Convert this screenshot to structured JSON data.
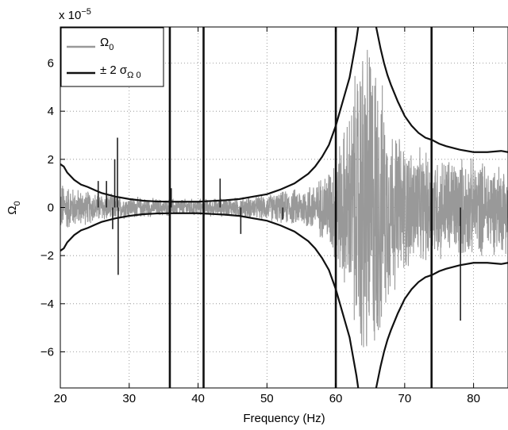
{
  "chart_data": {
    "type": "line",
    "xlabel": "Frequency (Hz)",
    "ylabel": "Ω",
    "ylabel_sub": "0",
    "exponent_label": {
      "prefix": "x 10",
      "power": "−5"
    },
    "xlim": [
      20,
      85
    ],
    "ylim": [
      -7.5,
      7.5
    ],
    "y_scale_exponent": -5,
    "xticks": [
      20,
      30,
      40,
      50,
      60,
      70,
      80
    ],
    "yticks": [
      -6,
      -4,
      -2,
      0,
      2,
      4,
      6
    ],
    "xtick_labels": [
      "20",
      "30",
      "40",
      "50",
      "60",
      "70",
      "80"
    ],
    "ytick_labels": [
      "−6",
      "−4",
      "−2",
      "0",
      "2",
      "4",
      "6"
    ],
    "grid": true,
    "grid_style": "dotted",
    "legend_position": "top-left",
    "series": [
      {
        "name": "Ω",
        "name_sub": "0",
        "style": "noisy signal",
        "color": "#999999",
        "envelope_x": [
          20,
          22,
          25,
          30,
          35,
          40,
          45,
          50,
          55,
          58,
          60,
          62,
          63,
          64,
          65,
          66,
          67,
          68,
          70,
          72,
          75,
          78,
          80,
          83,
          85
        ],
        "envelope_amplitude": [
          1.2,
          0.9,
          0.7,
          0.5,
          0.4,
          0.4,
          0.45,
          0.6,
          0.9,
          1.4,
          2.5,
          4.5,
          6.5,
          8.0,
          8.0,
          7.0,
          5.0,
          4.0,
          3.0,
          2.6,
          2.4,
          2.3,
          2.2,
          2.1,
          2.0
        ],
        "spikes": [
          {
            "x": 25.5,
            "y": 1.1
          },
          {
            "x": 26.7,
            "y": 1.1
          },
          {
            "x": 27.6,
            "y": -0.9
          },
          {
            "x": 27.9,
            "y": 2.0
          },
          {
            "x": 28.3,
            "y": 2.9
          },
          {
            "x": 28.4,
            "y": -2.8
          },
          {
            "x": 36.1,
            "y": 0.8
          },
          {
            "x": 40.8,
            "y": 0.7
          },
          {
            "x": 43.2,
            "y": 1.2
          },
          {
            "x": 46.2,
            "y": -1.1
          },
          {
            "x": 52.3,
            "y": -0.5
          },
          {
            "x": 78.1,
            "y": -4.7
          }
        ]
      },
      {
        "name": "± 2 σ",
        "name_sub": "Ω 0",
        "style": "bounds",
        "color": "#111111",
        "x": [
          20,
          20.5,
          21,
          22,
          23,
          24,
          25,
          26,
          28,
          30,
          32,
          34,
          36,
          38,
          40,
          42,
          44,
          46,
          48,
          50,
          52,
          54,
          56,
          57,
          58,
          59,
          60,
          60.5,
          61,
          61.5,
          62,
          62.5,
          63,
          63.5,
          64,
          65,
          65.5,
          66,
          66.5,
          67,
          67.5,
          68,
          69,
          70,
          71,
          72,
          73,
          74,
          75,
          76,
          78,
          80,
          82,
          84,
          85
        ],
        "upper": [
          1.8,
          1.7,
          1.45,
          1.15,
          0.95,
          0.85,
          0.72,
          0.6,
          0.45,
          0.35,
          0.28,
          0.25,
          0.24,
          0.24,
          0.24,
          0.27,
          0.3,
          0.35,
          0.45,
          0.55,
          0.75,
          1.0,
          1.4,
          1.7,
          2.1,
          2.6,
          3.4,
          3.9,
          4.4,
          4.9,
          5.4,
          6.2,
          7.0,
          8.0,
          8.5,
          8.5,
          8.0,
          7.3,
          6.6,
          6.0,
          5.5,
          5.1,
          4.4,
          3.8,
          3.4,
          3.1,
          2.9,
          2.8,
          2.65,
          2.55,
          2.4,
          2.3,
          2.3,
          2.35,
          2.3
        ]
      }
    ],
    "vertical_lines_x": [
      35.9,
      40.8,
      60.0,
      73.9
    ]
  }
}
